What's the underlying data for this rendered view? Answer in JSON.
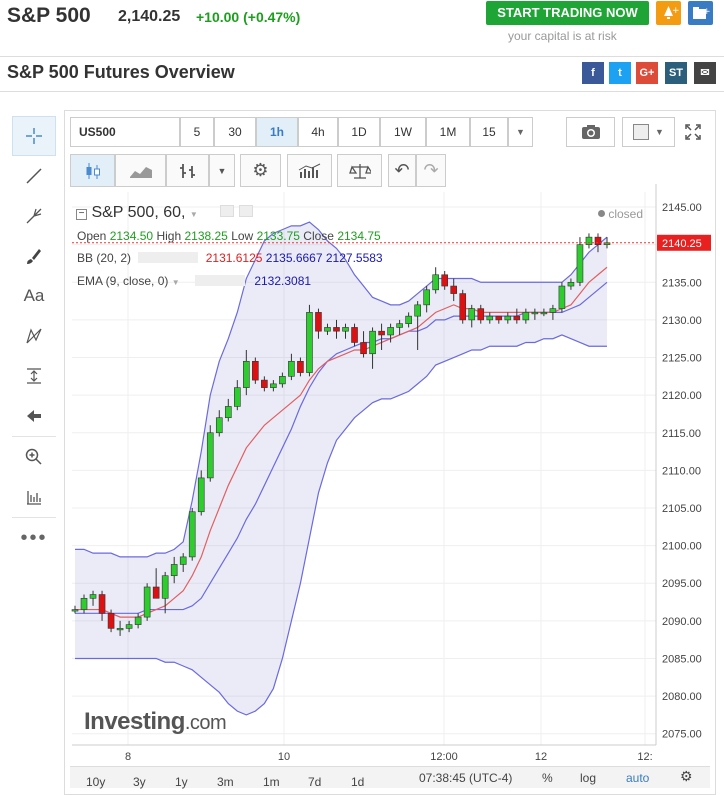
{
  "header": {
    "symbol": "S&P 500",
    "price": "2,140.25",
    "change": "+10.00 (+0.47%)",
    "cta": "START TRADING NOW",
    "risk": "your capital is at risk"
  },
  "overview": {
    "title": "S&P 500 Futures Overview"
  },
  "social": [
    {
      "name": "facebook-icon",
      "glyph": "f",
      "color": "#3b5998"
    },
    {
      "name": "twitter-icon",
      "glyph": "t",
      "color": "#1da1f2"
    },
    {
      "name": "googleplus-icon",
      "glyph": "G+",
      "color": "#dd4b39"
    },
    {
      "name": "stocktwits-icon",
      "glyph": "ST",
      "color": "#2c5f7c"
    },
    {
      "name": "email-icon",
      "glyph": "✉",
      "color": "#444"
    }
  ],
  "toolbar": {
    "symbol": "US500",
    "intervals": [
      "5",
      "30",
      "1h",
      "4h",
      "1D",
      "1W",
      "1M",
      "15"
    ],
    "selected": "1h"
  },
  "legend": {
    "title": "S&P 500, 60,",
    "status": "closed",
    "open_label": "Open",
    "open": "2134.50",
    "high_label": "High",
    "high": "2138.25",
    "low_label": "Low",
    "low": "2133.75",
    "close_label": "Close",
    "close": "2134.75",
    "bb_label": "BB (20, 2)",
    "bb_mid": "2131.6125",
    "bb_up": "2135.6667",
    "bb_low": "2127.5583",
    "ema_label": "EMA (9, close, 0)",
    "ema": "2132.3081"
  },
  "price_label": "2140.25",
  "watermark": "Investing",
  "watermark_suffix": ".com",
  "chart_data": {
    "type": "candlestick",
    "y_range": [
      2073,
      2148
    ],
    "y_ticks": [
      "2145.00",
      "2140.00",
      "2135.00",
      "2130.00",
      "2125.00",
      "2120.00",
      "2115.00",
      "2110.00",
      "2105.00",
      "2100.00",
      "2095.00",
      "2090.00",
      "2085.00",
      "2080.00",
      "2075.00"
    ],
    "x_ticks": [
      "8",
      "10",
      "12:00",
      "12",
      "12:"
    ],
    "last_price": 2140.25,
    "candles": [
      [
        2091.5,
        2092.0,
        2091.0,
        2091.5
      ],
      [
        2091.5,
        2093.5,
        2091.0,
        2093.0
      ],
      [
        2093.0,
        2094.0,
        2092.0,
        2093.5
      ],
      [
        2093.5,
        2094.0,
        2090.0,
        2091.0
      ],
      [
        2091.0,
        2091.5,
        2088.5,
        2089.0
      ],
      [
        2089.0,
        2090.0,
        2088.0,
        2089.0
      ],
      [
        2089.0,
        2090.0,
        2088.5,
        2089.5
      ],
      [
        2089.5,
        2091.0,
        2089.0,
        2090.5
      ],
      [
        2090.5,
        2095.0,
        2090.0,
        2094.5
      ],
      [
        2094.5,
        2097.0,
        2093.0,
        2093.0
      ],
      [
        2093.0,
        2096.5,
        2091.0,
        2096.0
      ],
      [
        2096.0,
        2098.5,
        2095.0,
        2097.5
      ],
      [
        2097.5,
        2099.0,
        2096.5,
        2098.5
      ],
      [
        2098.5,
        2105.0,
        2098.0,
        2104.5
      ],
      [
        2104.5,
        2110.0,
        2104.0,
        2109.0
      ],
      [
        2109.0,
        2116.0,
        2108.5,
        2115.0
      ],
      [
        2115.0,
        2118.0,
        2114.5,
        2117.0
      ],
      [
        2117.0,
        2119.5,
        2116.5,
        2118.5
      ],
      [
        2118.5,
        2122.0,
        2118.0,
        2121.0
      ],
      [
        2121.0,
        2126.0,
        2120.0,
        2124.5
      ],
      [
        2124.5,
        2125.0,
        2121.5,
        2122.0
      ],
      [
        2122.0,
        2122.5,
        2120.5,
        2121.0
      ],
      [
        2121.0,
        2122.0,
        2120.5,
        2121.5
      ],
      [
        2121.5,
        2123.0,
        2121.0,
        2122.5
      ],
      [
        2122.5,
        2125.5,
        2122.0,
        2124.5
      ],
      [
        2124.5,
        2125.0,
        2122.5,
        2123.0
      ],
      [
        2123.0,
        2132.0,
        2122.5,
        2131.0
      ],
      [
        2131.0,
        2131.5,
        2127.5,
        2128.5
      ],
      [
        2128.5,
        2129.5,
        2128.0,
        2129.0
      ],
      [
        2129.0,
        2130.0,
        2127.5,
        2128.5
      ],
      [
        2128.5,
        2129.5,
        2127.5,
        2129.0
      ],
      [
        2129.0,
        2129.5,
        2126.5,
        2127.0
      ],
      [
        2127.0,
        2128.5,
        2125.0,
        2125.5
      ],
      [
        2125.5,
        2129.0,
        2123.5,
        2128.5
      ],
      [
        2128.5,
        2129.5,
        2126.0,
        2128.0
      ],
      [
        2128.0,
        2129.5,
        2127.0,
        2129.0
      ],
      [
        2129.0,
        2130.0,
        2128.0,
        2129.5
      ],
      [
        2129.5,
        2131.0,
        2129.0,
        2130.5
      ],
      [
        2130.5,
        2132.5,
        2126.0,
        2132.0
      ],
      [
        2132.0,
        2134.5,
        2131.0,
        2134.0
      ],
      [
        2134.0,
        2137.0,
        2133.5,
        2136.0
      ],
      [
        2136.0,
        2136.5,
        2134.0,
        2134.5
      ],
      [
        2134.5,
        2135.5,
        2132.5,
        2133.5
      ],
      [
        2133.5,
        2134.0,
        2129.5,
        2130.0
      ],
      [
        2130.0,
        2132.0,
        2129.0,
        2131.5
      ],
      [
        2131.5,
        2132.0,
        2129.5,
        2130.0
      ],
      [
        2130.0,
        2131.0,
        2129.5,
        2130.5
      ],
      [
        2130.5,
        2130.5,
        2129.5,
        2130.0
      ],
      [
        2130.0,
        2131.0,
        2129.5,
        2130.5
      ],
      [
        2130.5,
        2131.5,
        2129.5,
        2130.0
      ],
      [
        2130.0,
        2131.5,
        2129.5,
        2131.0
      ],
      [
        2131.0,
        2131.5,
        2130.0,
        2131.0
      ],
      [
        2131.0,
        2131.5,
        2130.5,
        2131.0
      ],
      [
        2131.0,
        2132.0,
        2130.0,
        2131.5
      ],
      [
        2131.5,
        2135.0,
        2131.0,
        2134.5
      ],
      [
        2134.5,
        2135.5,
        2134.0,
        2135.0
      ],
      [
        2135.0,
        2141.0,
        2134.5,
        2140.0
      ],
      [
        2140.0,
        2141.5,
        2139.5,
        2141.0
      ],
      [
        2141.0,
        2141.5,
        2139.0,
        2140.0
      ],
      [
        2140.0,
        2141.0,
        2139.5,
        2140.25
      ]
    ],
    "bb_upper": [
      2099.5,
      2099.5,
      2099.0,
      2099.0,
      2099.0,
      2098.5,
      2098.5,
      2098.5,
      2098.5,
      2099.0,
      2099.0,
      2099.5,
      2100.5,
      2106.0,
      2112.5,
      2120.0,
      2124.5,
      2127.5,
      2131.0,
      2135.5,
      2138.0,
      2140.5,
      2141.5,
      2142.0,
      2142.5,
      2142.5,
      2143.0,
      2142.0,
      2140.5,
      2139.5,
      2138.0,
      2136.0,
      2134.5,
      2133.0,
      2132.5,
      2132.0,
      2132.0,
      2132.5,
      2133.5,
      2134.5,
      2135.5,
      2135.5,
      2135.5,
      2135.5,
      2135.5,
      2135.0,
      2135.0,
      2135.0,
      2135.0,
      2135.0,
      2135.0,
      2135.0,
      2135.0,
      2135.0,
      2135.0,
      2136.0,
      2137.5,
      2139.0,
      2140.0,
      2141.0
    ],
    "bb_lower": [
      2085.0,
      2085.0,
      2085.0,
      2085.0,
      2085.0,
      2085.0,
      2085.0,
      2085.0,
      2085.0,
      2085.0,
      2084.5,
      2084.5,
      2084.0,
      2083.5,
      2082.5,
      2081.5,
      2080.5,
      2079.0,
      2078.0,
      2077.5,
      2078.0,
      2079.0,
      2081.0,
      2085.0,
      2090.0,
      2095.0,
      2101.0,
      2107.0,
      2111.0,
      2114.0,
      2115.5,
      2117.0,
      2118.0,
      2119.0,
      2119.5,
      2119.5,
      2120.0,
      2120.5,
      2121.5,
      2122.5,
      2124.0,
      2124.5,
      2125.0,
      2125.5,
      2126.0,
      2126.0,
      2126.5,
      2126.5,
      2126.5,
      2126.5,
      2127.0,
      2127.0,
      2127.5,
      2127.5,
      2128.0,
      2127.5,
      2127.0,
      2126.5,
      2126.5,
      2126.5
    ],
    "bb_mid": [
      2091.0,
      2091.0,
      2091.0,
      2091.0,
      2091.0,
      2091.0,
      2091.0,
      2091.0,
      2091.5,
      2091.5,
      2091.5,
      2091.5,
      2091.5,
      2092.0,
      2093.0,
      2095.0,
      2097.0,
      2099.0,
      2101.0,
      2103.5,
      2105.5,
      2108.0,
      2110.5,
      2113.0,
      2115.5,
      2118.5,
      2121.0,
      2123.0,
      2124.5,
      2125.5,
      2126.0,
      2126.5,
      2127.0,
      2127.0,
      2127.5,
      2127.5,
      2128.0,
      2128.5,
      2128.5,
      2129.0,
      2130.0,
      2130.0,
      2130.5,
      2130.5,
      2130.5,
      2130.5,
      2130.5,
      2130.5,
      2130.5,
      2130.5,
      2131.0,
      2131.0,
      2131.0,
      2131.0,
      2131.0,
      2131.5,
      2132.0,
      2133.0,
      2134.0,
      2135.0
    ],
    "ema": [
      2091.5,
      2091.5,
      2091.5,
      2091.5,
      2091.0,
      2090.5,
      2090.5,
      2090.5,
      2091.0,
      2091.5,
      2092.0,
      2093.0,
      2094.0,
      2096.0,
      2098.5,
      2102.0,
      2105.0,
      2108.0,
      2110.5,
      2113.0,
      2114.5,
      2116.0,
      2117.0,
      2118.0,
      2119.0,
      2120.0,
      2122.0,
      2123.5,
      2124.5,
      2125.0,
      2125.5,
      2126.0,
      2126.0,
      2126.5,
      2127.0,
      2127.5,
      2128.0,
      2128.5,
      2129.0,
      2130.0,
      2131.0,
      2131.5,
      2132.0,
      2131.5,
      2131.5,
      2131.0,
      2131.0,
      2131.0,
      2131.0,
      2131.0,
      2131.0,
      2131.0,
      2131.0,
      2131.0,
      2131.5,
      2132.0,
      2133.5,
      2135.0,
      2136.0,
      2137.0
    ]
  },
  "bottom": {
    "ranges": [
      "10y",
      "3y",
      "1y",
      "3m",
      "1m",
      "7d",
      "1d"
    ],
    "time": "07:38:45 (UTC-4)",
    "pct": "%",
    "log": "log",
    "auto": "auto"
  }
}
